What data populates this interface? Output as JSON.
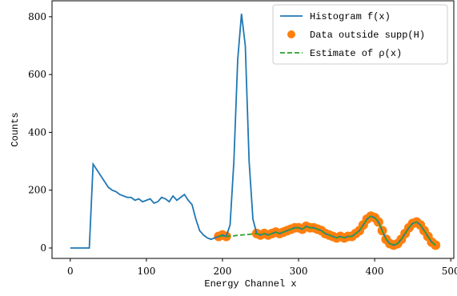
{
  "chart_data": {
    "type": "line",
    "xlabel": "Energy Channel x",
    "ylabel": "Counts",
    "x": [
      0,
      5,
      10,
      15,
      20,
      25,
      30,
      35,
      40,
      45,
      50,
      55,
      60,
      65,
      70,
      75,
      80,
      85,
      90,
      95,
      100,
      105,
      110,
      115,
      120,
      125,
      130,
      135,
      140,
      145,
      150,
      155,
      160,
      165,
      170,
      175,
      180,
      185,
      190,
      195,
      200,
      205,
      210,
      215,
      220,
      225,
      230,
      235,
      240,
      245,
      250,
      255,
      260,
      265,
      270,
      275,
      280,
      285,
      290,
      295,
      300,
      305,
      310,
      315,
      320,
      325,
      330,
      335,
      340,
      345,
      350,
      355,
      360,
      365,
      370,
      375,
      380,
      385,
      390,
      395,
      400,
      405,
      410,
      415,
      420,
      425,
      430,
      435,
      440,
      445,
      450,
      455,
      460,
      465,
      470,
      475,
      480
    ],
    "series": [
      {
        "name": "Histogram f(x)",
        "style": "line",
        "color": "#1f77b4",
        "values": [
          0,
          0,
          0,
          0,
          0,
          0,
          290,
          270,
          250,
          230,
          210,
          200,
          195,
          185,
          180,
          175,
          175,
          165,
          170,
          160,
          165,
          170,
          155,
          160,
          175,
          170,
          160,
          180,
          165,
          175,
          185,
          165,
          150,
          100,
          60,
          45,
          35,
          30,
          35,
          40,
          45,
          40,
          80,
          300,
          650,
          810,
          700,
          300,
          100,
          50,
          45,
          50,
          45,
          50,
          55,
          50,
          55,
          60,
          65,
          70,
          70,
          65,
          75,
          70,
          70,
          65,
          60,
          50,
          45,
          40,
          35,
          40,
          35,
          40,
          40,
          50,
          60,
          80,
          100,
          110,
          105,
          90,
          60,
          30,
          15,
          10,
          15,
          30,
          50,
          70,
          85,
          90,
          80,
          60,
          40,
          20,
          10
        ]
      },
      {
        "name": "Data outside supp(H)",
        "style": "scatter",
        "color": "#ff7f0e",
        "values": [
          null,
          null,
          null,
          null,
          null,
          null,
          null,
          null,
          null,
          null,
          null,
          null,
          null,
          null,
          null,
          null,
          null,
          null,
          null,
          null,
          null,
          null,
          null,
          null,
          null,
          null,
          null,
          null,
          null,
          null,
          null,
          null,
          null,
          null,
          null,
          null,
          null,
          null,
          null,
          40,
          45,
          40,
          null,
          null,
          null,
          null,
          null,
          null,
          null,
          50,
          45,
          50,
          45,
          50,
          55,
          50,
          55,
          60,
          65,
          70,
          70,
          65,
          75,
          70,
          70,
          65,
          60,
          50,
          45,
          40,
          35,
          40,
          35,
          40,
          40,
          50,
          60,
          80,
          100,
          110,
          105,
          90,
          60,
          30,
          15,
          10,
          15,
          30,
          50,
          70,
          85,
          90,
          80,
          60,
          40,
          20,
          10
        ]
      },
      {
        "name": "Estimate of ρ(x)",
        "style": "dashed",
        "color": "#2ca02c",
        "values": [
          null,
          null,
          null,
          null,
          null,
          null,
          null,
          null,
          null,
          null,
          null,
          null,
          null,
          null,
          null,
          null,
          null,
          null,
          null,
          null,
          null,
          null,
          null,
          null,
          null,
          null,
          null,
          null,
          null,
          null,
          null,
          null,
          null,
          null,
          null,
          null,
          null,
          null,
          null,
          40,
          42,
          40,
          41,
          42,
          44,
          45,
          46,
          47,
          49,
          50,
          45,
          50,
          45,
          50,
          55,
          50,
          55,
          60,
          65,
          70,
          70,
          65,
          75,
          70,
          70,
          65,
          60,
          50,
          45,
          40,
          35,
          40,
          35,
          40,
          40,
          50,
          60,
          80,
          100,
          110,
          105,
          90,
          60,
          30,
          15,
          10,
          15,
          30,
          50,
          70,
          85,
          90,
          80,
          60,
          40,
          20,
          10
        ]
      }
    ],
    "xlim": [
      -24,
      504
    ],
    "ylim": [
      -36,
      855
    ],
    "xticks": [
      0,
      100,
      200,
      300,
      400,
      500
    ],
    "yticks": [
      0,
      200,
      400,
      600,
      800
    ],
    "legend": "upper right"
  }
}
